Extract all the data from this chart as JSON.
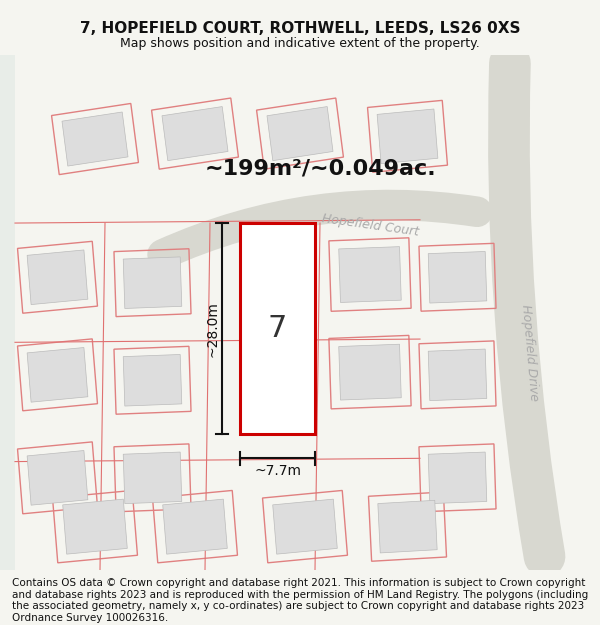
{
  "title": "7, HOPEFIELD COURT, ROTHWELL, LEEDS, LS26 0XS",
  "subtitle": "Map shows position and indicative extent of the property.",
  "footer": "Contains OS data © Crown copyright and database right 2021. This information is subject to Crown copyright and database rights 2023 and is reproduced with the permission of HM Land Registry. The polygons (including the associated geometry, namely x, y co-ordinates) are subject to Crown copyright and database rights 2023 Ordnance Survey 100026316.",
  "area_label": "~199m²/~0.049ac.",
  "width_label": "~7.7m",
  "height_label": "~28.0m",
  "property_number": "7",
  "bg_color": "#f5f5f0",
  "map_bg": "#ffffff",
  "road_color": "#d4d4c8",
  "plot_outline_color": "#cc0000",
  "building_fill": "#e8e8e8",
  "building_outline": "#c8c8c8",
  "road_outline": "#c8c8c8",
  "street_label_color": "#aaaaaa",
  "dim_line_color": "#111111",
  "title_fontsize": 11,
  "subtitle_fontsize": 9,
  "footer_fontsize": 7.5,
  "label_fontsize": 13
}
